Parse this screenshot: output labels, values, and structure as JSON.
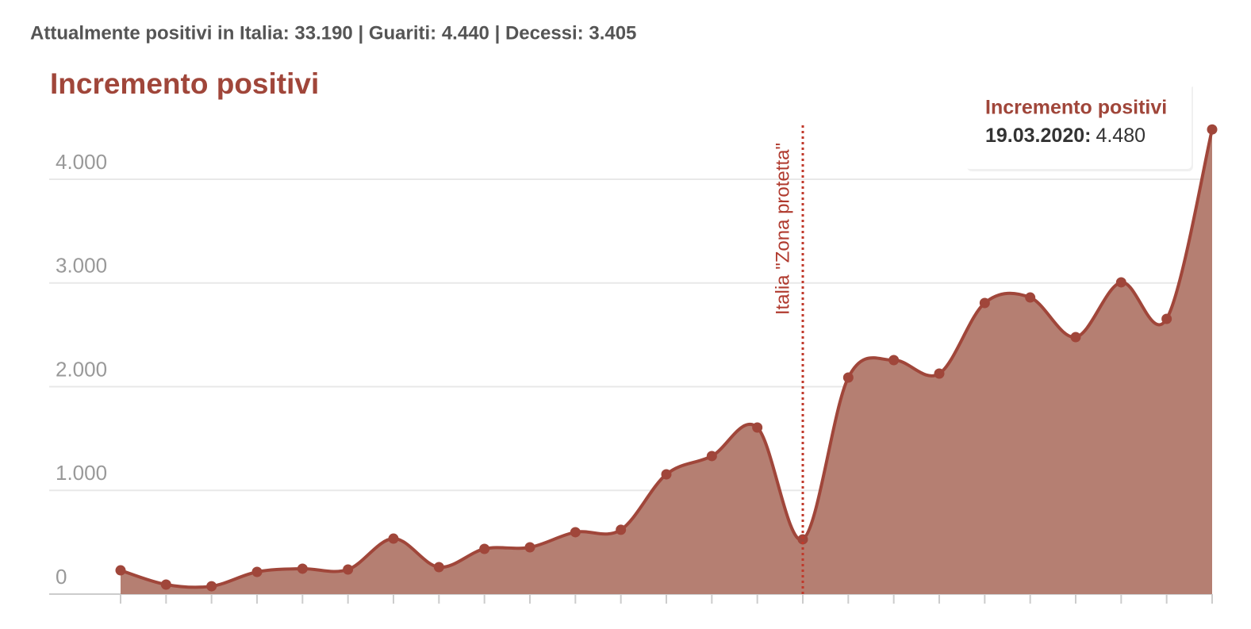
{
  "header": "Attualmente positivi in Italia: 33.190 | Guariti: 4.440 | Decessi: 3.405",
  "chart_data": {
    "type": "area",
    "title": "Incremento positivi",
    "categories": [
      null,
      null,
      null,
      null,
      null,
      null,
      null,
      null,
      null,
      null,
      null,
      null,
      null,
      null,
      null,
      null,
      null,
      null,
      null,
      null,
      null,
      null,
      null,
      null,
      null
    ],
    "series": [
      {
        "name": "Incremento positivi",
        "color": "#a0463a",
        "fill": "#b57f72",
        "values": [
          229,
          92,
          76,
          214,
          245,
          237,
          535,
          260,
          436,
          451,
          597,
          620,
          1155,
          1331,
          1606,
          528,
          2088,
          2256,
          2126,
          2807,
          2860,
          2478,
          3006,
          2654,
          4480
        ]
      }
    ],
    "ylim": [
      0,
      4500
    ],
    "yticks": [
      0,
      {
        "value": 1000,
        "label": "1.000"
      },
      {
        "value": 2000,
        "label": "2.000"
      },
      {
        "value": 3000,
        "label": "3.000"
      },
      {
        "value": 4000,
        "label": "4.000"
      }
    ],
    "grid": true,
    "annotations": [
      {
        "text": "Italia \"Zona protetta\"",
        "category_index": 15
      }
    ],
    "tooltip": {
      "title": "Incremento positivi",
      "date": "19.03.2020:",
      "value": "4.480",
      "category_index": 24
    }
  }
}
